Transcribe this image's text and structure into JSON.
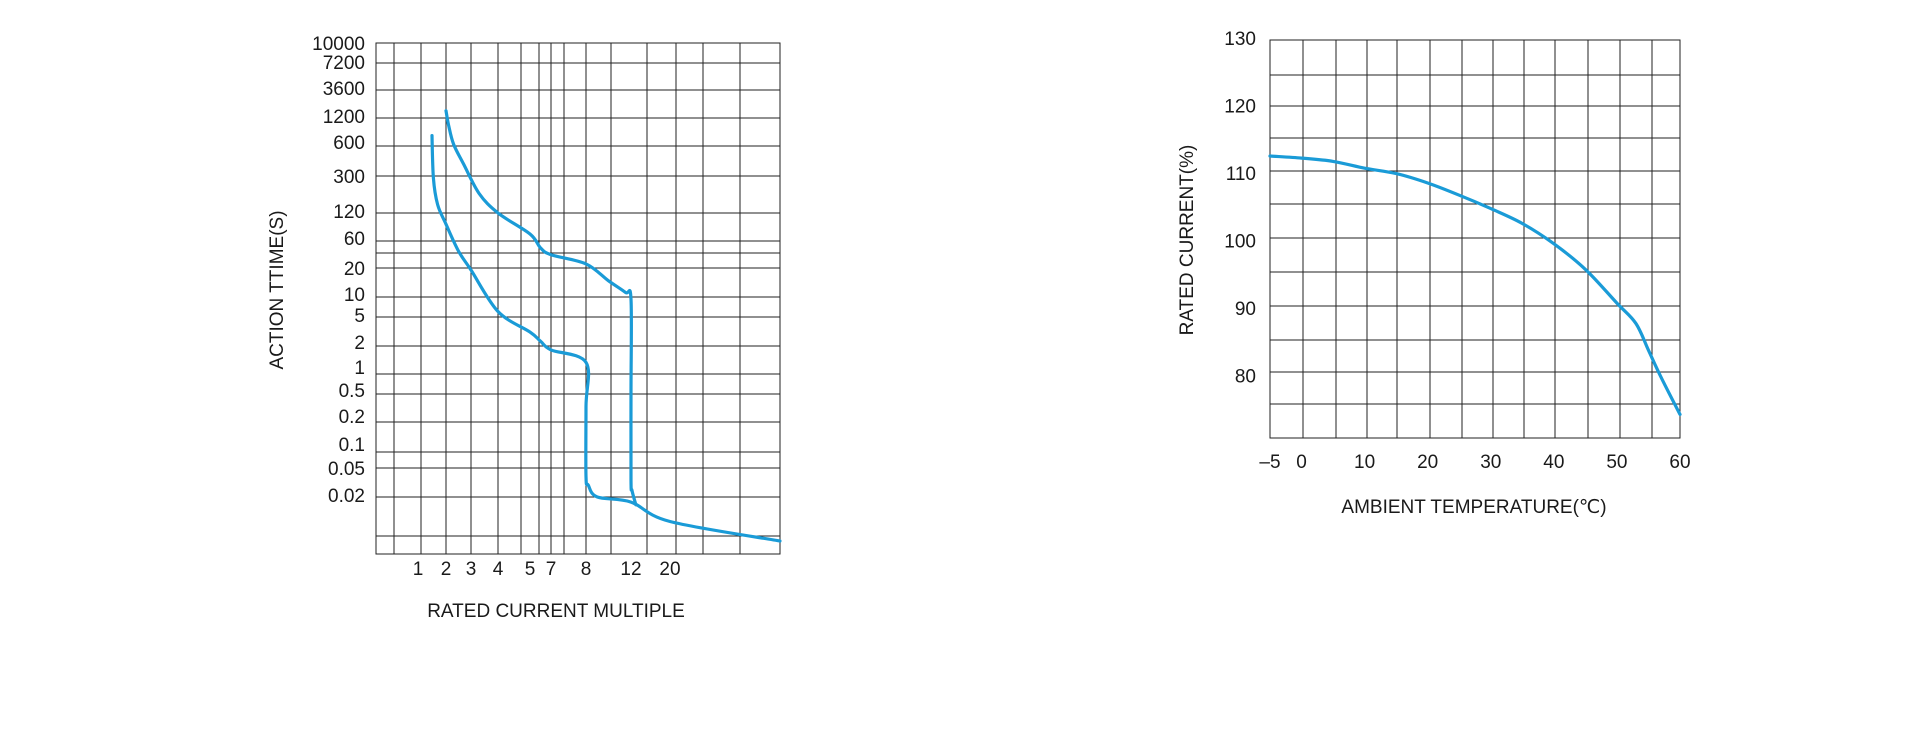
{
  "colors": {
    "curve": "#1a9bd7",
    "grid": "#222222",
    "text": "#1a1a1a"
  },
  "chart_data": [
    {
      "type": "line",
      "title": "",
      "xlabel": "RATED CURRENT MULTIPLE",
      "ylabel": "ACTION TTIME(S)",
      "x_tick_labels": [
        "1",
        "2",
        "3",
        "4",
        "5",
        "7",
        "8",
        "12",
        "20"
      ],
      "y_tick_labels": [
        "10000",
        "7200",
        "3600",
        "1200",
        "600",
        "300",
        "120",
        "60",
        "20",
        "10",
        "5",
        "2",
        "1",
        "0.5",
        "0.2",
        "0.1",
        "0.05",
        "0.02"
      ],
      "grid": true,
      "legend": "none",
      "series": [
        {
          "x": [
            1.5,
            1.55,
            1.7,
            2,
            2.5,
            3,
            4,
            5,
            6,
            7,
            8,
            8,
            8,
            8.2,
            9,
            12,
            20,
            40
          ],
          "y": [
            750,
            300,
            150,
            90,
            40,
            20,
            6,
            3,
            2.2,
            1.7,
            1.2,
            0.3,
            0.04,
            0.03,
            0.02,
            0.018,
            0.012,
            0.008
          ]
        },
        {
          "x": [
            2,
            2.1,
            2.3,
            2.7,
            3.3,
            4,
            5,
            6,
            7,
            8,
            10,
            11.5,
            12,
            12,
            12,
            12.2,
            13
          ],
          "y": [
            1600,
            1000,
            600,
            400,
            200,
            120,
            70,
            45,
            35,
            25,
            15,
            11,
            9,
            0.5,
            0.035,
            0.025,
            0.017
          ]
        }
      ]
    },
    {
      "type": "line",
      "title": "",
      "xlabel": "AMBIENT TEMPERATURE(℃)",
      "ylabel": "RATED CURRENT(%)",
      "x_ticks": [
        -5,
        0,
        10,
        20,
        30,
        40,
        50,
        60
      ],
      "x_tick_labels": [
        "–5",
        "0",
        "10",
        "20",
        "30",
        "40",
        "50",
        "60"
      ],
      "y_ticks": [
        80,
        90,
        100,
        110,
        120,
        130
      ],
      "xlim": [
        -5,
        60
      ],
      "ylim": [
        71,
        130
      ],
      "grid": true,
      "legend": "none",
      "series": [
        {
          "x": [
            -5,
            0,
            5,
            10,
            15,
            20,
            25,
            30,
            35,
            40,
            45,
            50,
            53,
            55,
            57,
            60
          ],
          "y": [
            112.8,
            112.5,
            112,
            111,
            110.2,
            108.8,
            107,
            105,
            102.8,
            99.8,
            96,
            91,
            88,
            84,
            80,
            74.5
          ]
        }
      ]
    }
  ]
}
